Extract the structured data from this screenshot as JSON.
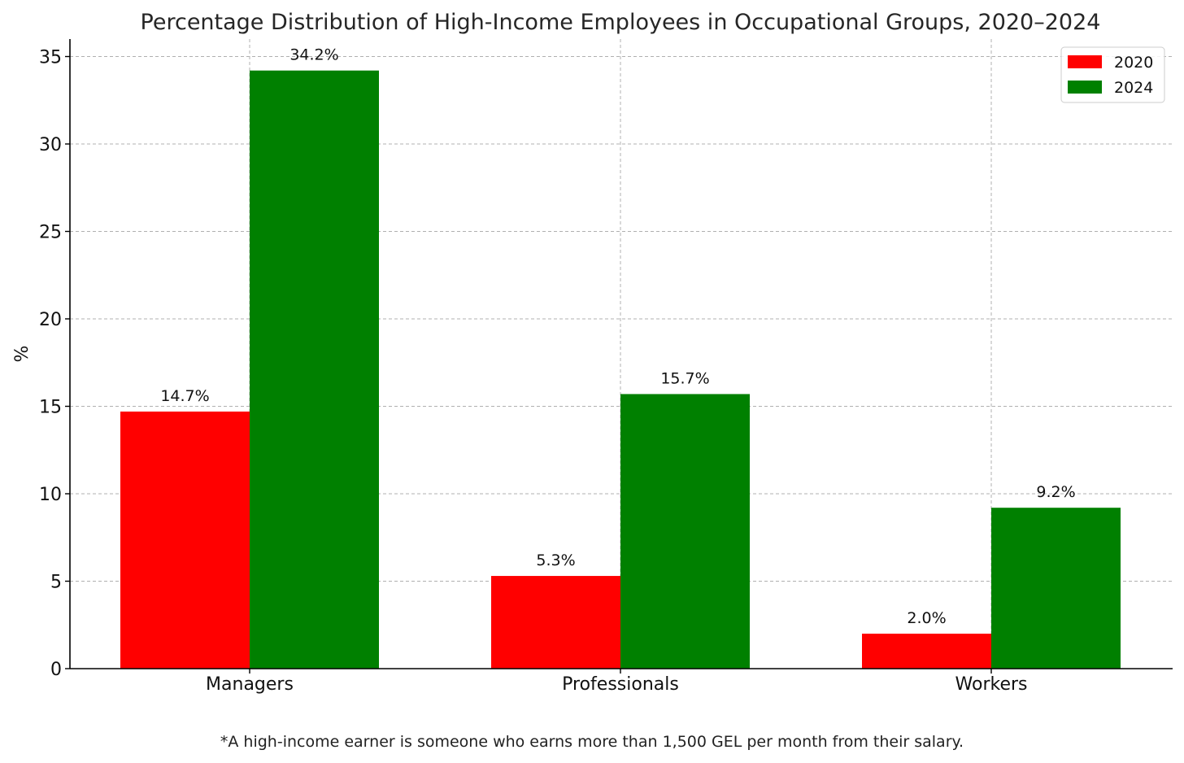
{
  "chart_data": {
    "type": "bar",
    "title": "Percentage Distribution of High-Income Employees in Occupational Groups, 2020–2024",
    "ylabel": "%",
    "xlabel": "",
    "categories": [
      "Managers",
      "Professionals",
      "Workers"
    ],
    "series": [
      {
        "name": "2020",
        "color": "#ff0000",
        "values": [
          14.7,
          5.3,
          2.0
        ],
        "labels": [
          "14.7%",
          "5.3%",
          "2.0%"
        ]
      },
      {
        "name": "2024",
        "color": "#008000",
        "values": [
          34.2,
          15.7,
          9.2
        ],
        "labels": [
          "34.2%",
          "15.7%",
          "9.2%"
        ]
      }
    ],
    "ylim": [
      0,
      36
    ],
    "yticks": [
      0,
      5,
      10,
      15,
      20,
      25,
      30,
      35
    ],
    "grid": true,
    "legend": "top-right",
    "footnote": "*A high-income earner is someone who earns more than 1,500 GEL per month from their salary."
  }
}
